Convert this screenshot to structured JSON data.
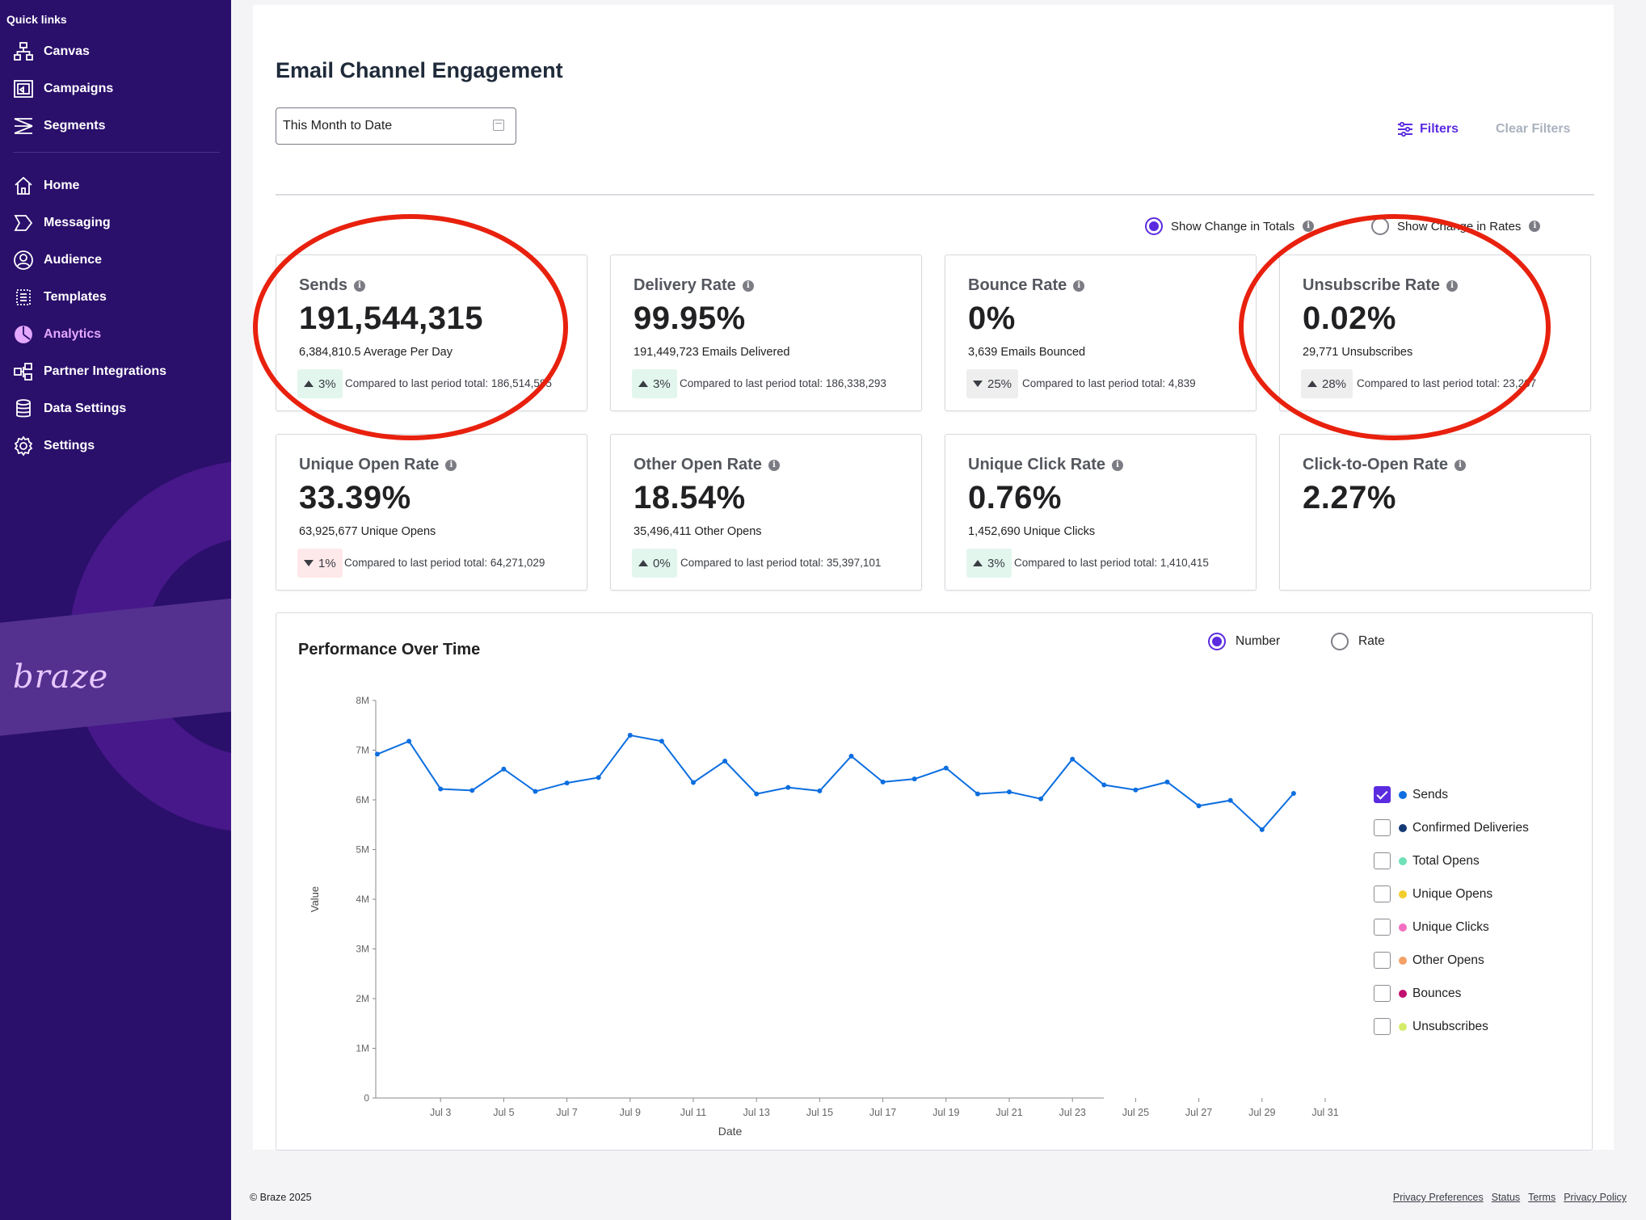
{
  "sidebar": {
    "heading": "Quick links",
    "quick": [
      {
        "label": "Canvas",
        "icon": "canvas-icon"
      },
      {
        "label": "Campaigns",
        "icon": "campaigns-icon"
      },
      {
        "label": "Segments",
        "icon": "segments-icon"
      }
    ],
    "nav": [
      {
        "label": "Home",
        "icon": "home-icon"
      },
      {
        "label": "Messaging",
        "icon": "messaging-icon"
      },
      {
        "label": "Audience",
        "icon": "audience-icon"
      },
      {
        "label": "Templates",
        "icon": "templates-icon"
      },
      {
        "label": "Analytics",
        "icon": "analytics-icon",
        "active": true
      },
      {
        "label": "Partner Integrations",
        "icon": "partner-integrations-icon"
      },
      {
        "label": "Data Settings",
        "icon": "data-settings-icon"
      },
      {
        "label": "Settings",
        "icon": "settings-icon"
      }
    ],
    "brand": "braze"
  },
  "page": {
    "title": "Email Channel Engagement",
    "date_range": "This Month to Date",
    "filters_label": "Filters",
    "clear_filters_label": "Clear Filters",
    "toggle_totals": "Show Change in Totals",
    "toggle_rates": "Show Change in Rates"
  },
  "cards": [
    {
      "title": "Sends",
      "value": "191,544,315",
      "sub": "6,384,810.5 Average Per Day",
      "change": "3%",
      "dir": "up",
      "compare": "Compared to last period total: 186,514,585"
    },
    {
      "title": "Delivery Rate",
      "value": "99.95%",
      "sub": "191,449,723 Emails Delivered",
      "change": "3%",
      "dir": "up",
      "compare": "Compared to last period total: 186,338,293"
    },
    {
      "title": "Bounce Rate",
      "value": "0%",
      "sub": "3,639 Emails Bounced",
      "change": "25%",
      "dir": "down",
      "compare": "Compared to last period total: 4,839"
    },
    {
      "title": "Unsubscribe Rate",
      "value": "0.02%",
      "sub": "29,771 Unsubscribes",
      "change": "28%",
      "dir": "up-neutral",
      "compare": "Compared to last period total: 23,207"
    },
    {
      "title": "Unique Open Rate",
      "value": "33.39%",
      "sub": "63,925,677 Unique Opens",
      "change": "1%",
      "dir": "down-red",
      "compare": "Compared to last period total: 64,271,029"
    },
    {
      "title": "Other Open Rate",
      "value": "18.54%",
      "sub": "35,496,411 Other Opens",
      "change": "0%",
      "dir": "up",
      "compare": "Compared to last period total: 35,397,101"
    },
    {
      "title": "Unique Click Rate",
      "value": "0.76%",
      "sub": "1,452,690 Unique Clicks",
      "change": "3%",
      "dir": "up",
      "compare": "Compared to last period total: 1,410,415"
    },
    {
      "title": "Click-to-Open Rate",
      "value": "2.27%",
      "sub": "",
      "change": "",
      "dir": "",
      "compare": ""
    }
  ],
  "chart": {
    "title": "Performance Over Time",
    "mode_number": "Number",
    "mode_rate": "Rate",
    "legend": [
      {
        "label": "Sends",
        "color": "#0c6ee0",
        "checked": true
      },
      {
        "label": "Confirmed Deliveries",
        "color": "#143a75",
        "checked": false
      },
      {
        "label": "Total Opens",
        "color": "#6fe0b8",
        "checked": false
      },
      {
        "label": "Unique Opens",
        "color": "#f2cd2e",
        "checked": false
      },
      {
        "label": "Unique Clicks",
        "color": "#f26fc0",
        "checked": false
      },
      {
        "label": "Other Opens",
        "color": "#f4a066",
        "checked": false
      },
      {
        "label": "Bounces",
        "color": "#c2106e",
        "checked": false
      },
      {
        "label": "Unsubscribes",
        "color": "#d5ec6b",
        "checked": false
      }
    ]
  },
  "chart_data": {
    "type": "line",
    "xlabel": "Date",
    "ylabel": "Value",
    "ylim": [
      0,
      8000000
    ],
    "yticks": [
      "0",
      "1M",
      "2M",
      "3M",
      "4M",
      "5M",
      "6M",
      "7M",
      "8M"
    ],
    "xticks": [
      "Jul 3",
      "Jul 5",
      "Jul 7",
      "Jul 9",
      "Jul 11",
      "Jul 13",
      "Jul 15",
      "Jul 17",
      "Jul 19",
      "Jul 21",
      "Jul 23",
      "Jul 25",
      "Jul 27",
      "Jul 29",
      "Jul 31"
    ],
    "grid": false,
    "legend": "right",
    "series": [
      {
        "name": "Sends",
        "color": "#0c6ee0",
        "x": [
          "Jul 1",
          "Jul 2",
          "Jul 3",
          "Jul 4",
          "Jul 5",
          "Jul 6",
          "Jul 7",
          "Jul 8",
          "Jul 9",
          "Jul 10",
          "Jul 11",
          "Jul 12",
          "Jul 13",
          "Jul 14",
          "Jul 15",
          "Jul 16",
          "Jul 17",
          "Jul 18",
          "Jul 19",
          "Jul 20",
          "Jul 21",
          "Jul 22",
          "Jul 23",
          "Jul 24",
          "Jul 25",
          "Jul 26",
          "Jul 27",
          "Jul 28",
          "Jul 29",
          "Jul 30"
        ],
        "values": [
          6920000,
          7180000,
          6220000,
          6190000,
          6620000,
          6170000,
          6340000,
          6450000,
          7300000,
          7180000,
          6350000,
          6780000,
          6120000,
          6250000,
          6180000,
          6880000,
          6360000,
          6420000,
          6640000,
          6120000,
          6160000,
          6020000,
          6820000,
          6300000,
          6200000,
          6360000,
          5880000,
          5990000,
          5400000,
          6130000
        ]
      }
    ]
  },
  "annotations": {
    "color": "#e8210e"
  },
  "footer": {
    "copyright": "© Braze 2025",
    "links": [
      "Privacy Preferences",
      "Status",
      "Terms",
      "Privacy Policy"
    ]
  }
}
